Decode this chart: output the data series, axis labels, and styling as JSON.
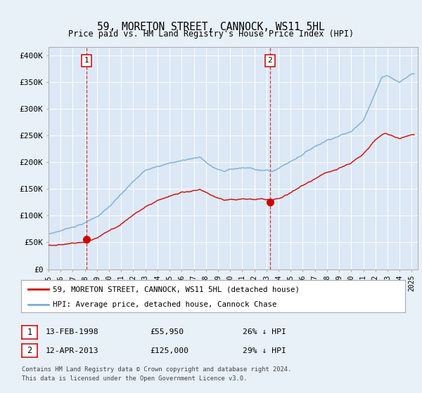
{
  "title": "59, MORETON STREET, CANNOCK, WS11 5HL",
  "subtitle": "Price paid vs. HM Land Registry's House Price Index (HPI)",
  "ylabel_ticks": [
    "£0",
    "£50K",
    "£100K",
    "£150K",
    "£200K",
    "£250K",
    "£300K",
    "£350K",
    "£400K"
  ],
  "ytick_values": [
    0,
    50000,
    100000,
    150000,
    200000,
    250000,
    300000,
    350000,
    400000
  ],
  "ylim": [
    0,
    415000
  ],
  "xlim_start": 1995.0,
  "xlim_end": 2025.5,
  "background_color": "#e8f0f8",
  "plot_bg": "#dce8f5",
  "legend_line1": "59, MORETON STREET, CANNOCK, WS11 5HL (detached house)",
  "legend_line2": "HPI: Average price, detached house, Cannock Chase",
  "transaction1_date": "13-FEB-1998",
  "transaction1_price": "£55,950",
  "transaction1_pct": "26% ↓ HPI",
  "transaction1_x": 1998.12,
  "transaction1_y": 55950,
  "transaction2_date": "12-APR-2013",
  "transaction2_price": "£125,000",
  "transaction2_pct": "29% ↓ HPI",
  "transaction2_x": 2013.29,
  "transaction2_y": 125000,
  "footer": "Contains HM Land Registry data © Crown copyright and database right 2024.\nThis data is licensed under the Open Government Licence v3.0.",
  "red_color": "#cc0000",
  "blue_color": "#7aadd4",
  "grid_color": "#ffffff",
  "spine_color": "#aaaaaa"
}
